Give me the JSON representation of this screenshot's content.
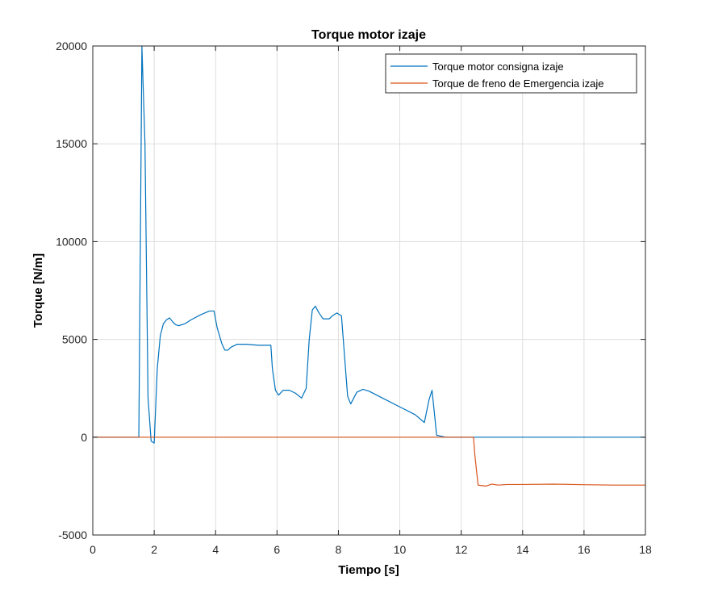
{
  "chart_data": {
    "type": "line",
    "title": "Torque motor izaje",
    "xlabel": "Tiempo [s]",
    "ylabel": "Torque [N/m]",
    "xlim": [
      0,
      18
    ],
    "ylim": [
      -5000,
      20000
    ],
    "x_ticks": [
      0,
      2,
      4,
      6,
      8,
      10,
      12,
      14,
      16,
      18
    ],
    "y_ticks": [
      -5000,
      0,
      5000,
      10000,
      15000,
      20000
    ],
    "x_tick_labels": [
      "0",
      "2",
      "4",
      "6",
      "8",
      "10",
      "12",
      "14",
      "16",
      "18"
    ],
    "y_tick_labels": [
      "-5000",
      "0",
      "5000",
      "10000",
      "15000",
      "20000"
    ],
    "grid": true,
    "legend_position": "top-right",
    "series": [
      {
        "name": "Torque motor consigna izaje",
        "color": "#0072BD",
        "x": [
          0,
          1.5,
          1.6,
          1.7,
          1.8,
          1.9,
          2.0,
          2.1,
          2.2,
          2.3,
          2.4,
          2.5,
          2.6,
          2.7,
          2.8,
          3.0,
          3.2,
          3.5,
          3.8,
          3.95,
          4.05,
          4.2,
          4.3,
          4.4,
          4.5,
          4.7,
          5.0,
          5.4,
          5.8,
          5.85,
          5.95,
          6.05,
          6.2,
          6.4,
          6.6,
          6.8,
          6.95,
          7.05,
          7.15,
          7.25,
          7.35,
          7.5,
          7.7,
          7.8,
          7.95,
          8.1,
          8.3,
          8.4,
          8.6,
          8.8,
          9.0,
          9.5,
          10.0,
          10.5,
          10.8,
          10.95,
          11.05,
          11.2,
          11.5,
          12.0,
          18.0
        ],
        "values": [
          0,
          0,
          20000,
          15000,
          2000,
          -200,
          -300,
          3500,
          5200,
          5800,
          6000,
          6100,
          5900,
          5750,
          5700,
          5800,
          6000,
          6250,
          6450,
          6450,
          5600,
          4800,
          4450,
          4450,
          4600,
          4750,
          4750,
          4700,
          4700,
          3500,
          2400,
          2150,
          2400,
          2400,
          2250,
          2000,
          2500,
          5000,
          6500,
          6700,
          6400,
          6050,
          6050,
          6200,
          6350,
          6200,
          2100,
          1700,
          2300,
          2450,
          2350,
          1950,
          1550,
          1150,
          750,
          1900,
          2400,
          100,
          0,
          0,
          0
        ]
      },
      {
        "name": "Torque de freno de Emergencia izaje",
        "color": "#D95319",
        "x": [
          0,
          12.4,
          12.45,
          12.55,
          12.8,
          13.0,
          13.2,
          13.5,
          14.0,
          15.0,
          16.0,
          17.0,
          18.0
        ],
        "values": [
          0,
          0,
          -1000,
          -2450,
          -2500,
          -2400,
          -2450,
          -2420,
          -2420,
          -2400,
          -2430,
          -2450,
          -2450
        ]
      }
    ]
  }
}
